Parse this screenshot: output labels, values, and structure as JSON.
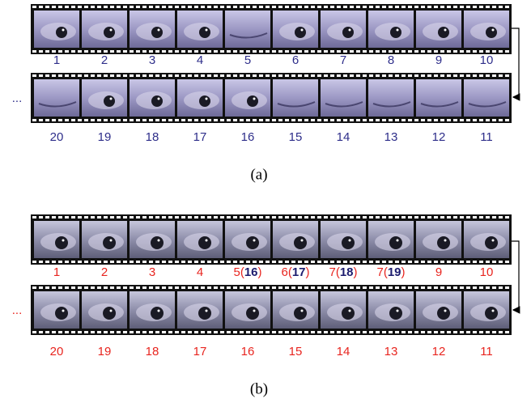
{
  "panel_a": {
    "row1": [
      "1",
      "2",
      "3",
      "4",
      "5",
      "6",
      "7",
      "8",
      "9",
      "10"
    ],
    "row2": [
      "20",
      "19",
      "18",
      "17",
      "16",
      "15",
      "14",
      "13",
      "12",
      "11"
    ],
    "ellipsis": "...",
    "caption": "(a)"
  },
  "panel_b": {
    "row1": [
      "1",
      "2",
      "3",
      "4",
      {
        "text": "5(",
        "bold": "16",
        "end": ")"
      },
      {
        "text": "6(",
        "bold": "17",
        "end": ")"
      },
      {
        "text": "7(",
        "bold": "18",
        "end": ")"
      },
      {
        "text": "7(",
        "bold": "19",
        "end": ")"
      },
      "9",
      "10"
    ],
    "row2": [
      "20",
      "19",
      "18",
      "17",
      "16",
      "15",
      "14",
      "13",
      "12",
      "11"
    ],
    "ellipsis": "...",
    "caption": "(b)"
  }
}
